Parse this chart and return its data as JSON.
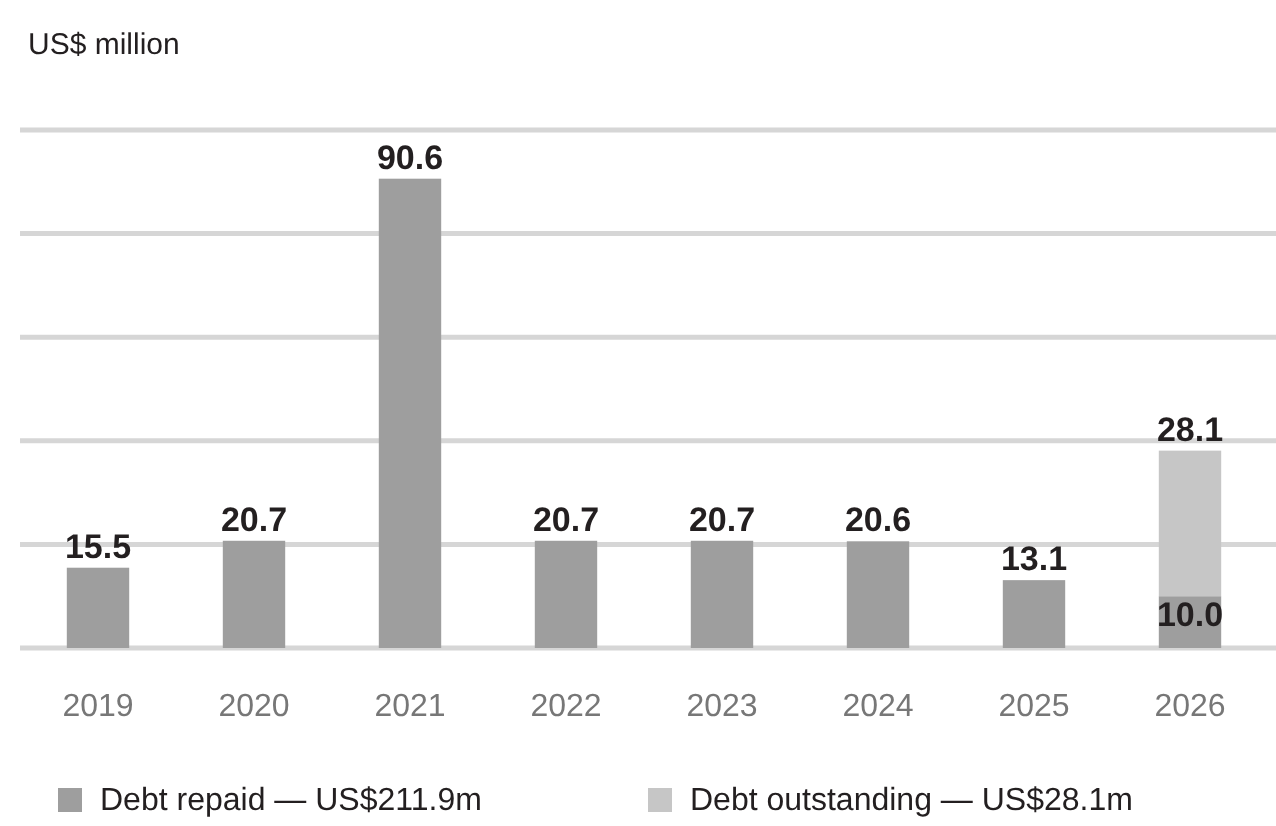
{
  "chart_data": {
    "type": "bar",
    "ylabel": "US$ million",
    "categories": [
      "2019",
      "2020",
      "2021",
      "2022",
      "2023",
      "2024",
      "2025",
      "2026"
    ],
    "stacked": true,
    "series": [
      {
        "name": "Debt repaid — US$211.9m",
        "color": "#9e9e9e",
        "values": [
          15.5,
          20.7,
          90.6,
          20.7,
          20.7,
          20.6,
          13.1,
          10.0
        ],
        "value_labels": [
          "15.5",
          "20.7",
          "90.6",
          "20.7",
          "20.7",
          "20.6",
          "13.1",
          "10.0"
        ]
      },
      {
        "name": "Debt outstanding — US$28.1m",
        "color": "#c6c6c6",
        "values": [
          null,
          null,
          null,
          null,
          null,
          null,
          null,
          28.1
        ],
        "value_labels": [
          null,
          null,
          null,
          null,
          null,
          null,
          null,
          "28.1"
        ]
      }
    ],
    "ylim": [
      0,
      100
    ],
    "yticks": [
      {
        "value": 0,
        "label": null
      },
      {
        "value": 20,
        "label": null
      },
      {
        "value": 40,
        "label": null
      },
      {
        "value": 60,
        "label": null
      },
      {
        "value": 80,
        "label": null
      },
      {
        "value": 100,
        "label": null
      }
    ],
    "tick_labels": "x",
    "grid": "y",
    "legend": "bottom"
  }
}
